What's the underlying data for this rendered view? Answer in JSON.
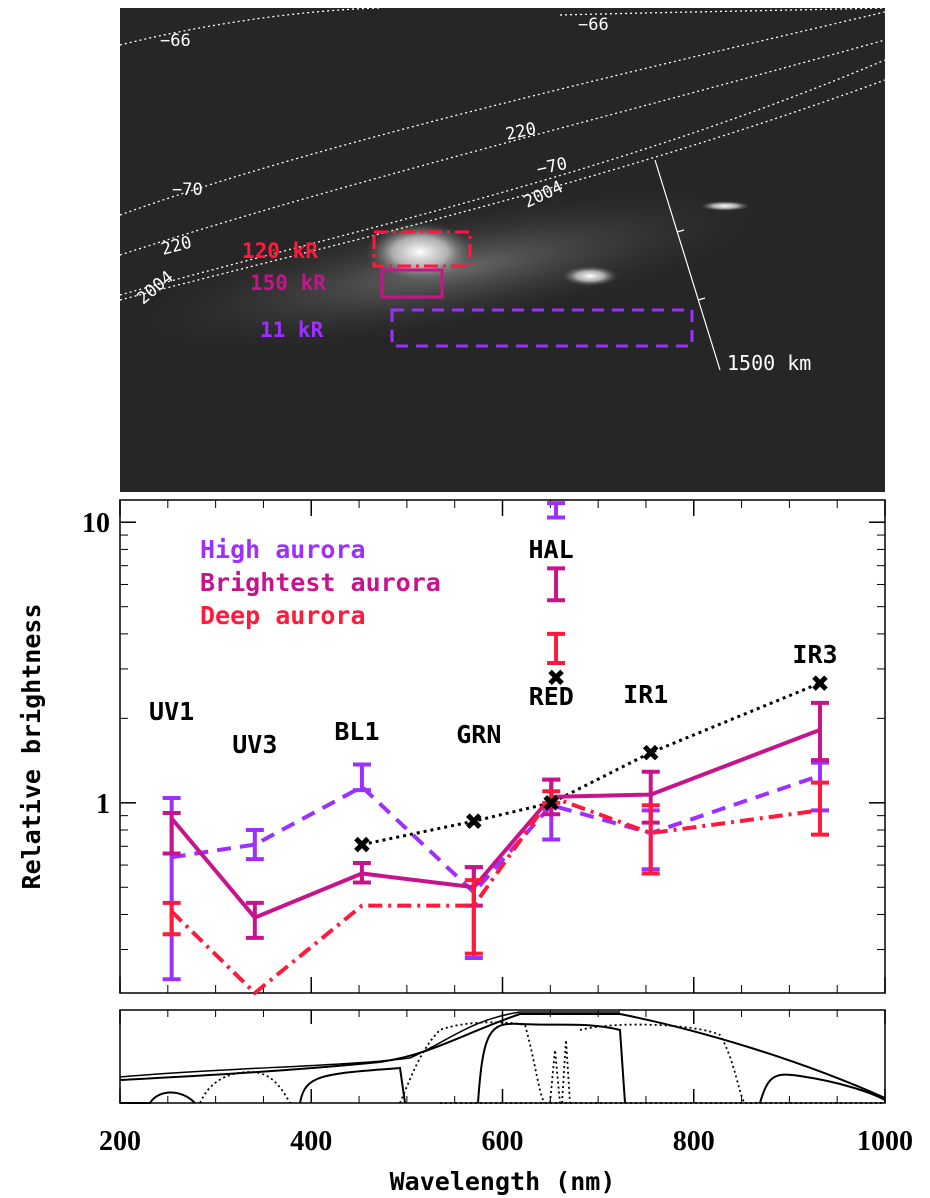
{
  "image_annotations": {
    "contour_labels": [
      "−66",
      "−66",
      "220",
      "−70",
      "−70",
      "2004",
      "220",
      "2004"
    ],
    "boxes": [
      "120 kR",
      "150 kR",
      "11 kR"
    ],
    "scale": "1500 km"
  },
  "chart_data": {
    "type": "line",
    "xlabel": "Wavelength (nm)",
    "ylabel": "Relative brightness",
    "xlim": [
      200,
      1000
    ],
    "xticks": [
      200,
      400,
      600,
      800,
      1000
    ],
    "xminorticks": [
      250,
      300,
      350,
      450,
      500,
      550,
      650,
      700,
      750,
      850,
      900,
      950
    ],
    "ylim": [
      0.21,
      12
    ],
    "yticks": [
      1,
      10
    ],
    "yminorticks": [
      0.3,
      0.4,
      0.5,
      0.6,
      0.7,
      0.8,
      0.9,
      2,
      3,
      4,
      5,
      6,
      7,
      8,
      9
    ],
    "log_y": true,
    "filters": [
      "UV1",
      "UV3",
      "BL1",
      "GRN",
      "RED",
      "IR1",
      "IR3"
    ],
    "x": [
      254,
      341,
      453,
      570,
      651,
      755,
      932
    ],
    "series": [
      {
        "name": "High aurora",
        "color": "#9b30ff",
        "dash": "dashed",
        "values": [
          0.64,
          0.71,
          1.14,
          0.48,
          0.98,
          0.78,
          1.25
        ],
        "err_low": [
          0.235,
          0.63,
          1.11,
          0.28,
          0.74,
          0.58,
          0.94
        ],
        "err_high": [
          1.04,
          0.8,
          1.37,
          0.59,
          1.21,
          0.94,
          1.39
        ]
      },
      {
        "name": "Brightest aurora",
        "color": "#c8148c",
        "dash": "solid",
        "values": [
          0.88,
          0.39,
          0.56,
          0.5,
          1.05,
          1.07,
          1.82
        ],
        "err_low": [
          0.66,
          0.33,
          0.52,
          0.43,
          0.91,
          0.85,
          1.42
        ],
        "err_high": [
          0.92,
          0.44,
          0.61,
          0.59,
          1.21,
          1.29,
          2.27
        ]
      },
      {
        "name": "Deep aurora",
        "color": "#ff1a3c",
        "dash": "dashdot",
        "values": [
          0.41,
          0.21,
          0.43,
          0.43,
          1.05,
          0.78,
          0.94
        ],
        "err_low": [
          0.34,
          null,
          null,
          0.29,
          1.0,
          0.56,
          0.77
        ],
        "err_high": [
          0.44,
          null,
          null,
          0.53,
          1.1,
          0.98,
          1.18
        ]
      }
    ],
    "hal": {
      "label": "HAL",
      "x": 656,
      "values": [
        11,
        5.97,
        3.5
      ],
      "err_low": [
        10.4,
        5.27,
        3.15
      ],
      "err_high": [
        11.7,
        6.85,
        4.0
      ],
      "reference": 2.8
    },
    "reference": {
      "color": "#000000",
      "x": [
        453,
        570,
        651,
        755,
        932
      ],
      "values": [
        0.71,
        0.86,
        1.0,
        1.51,
        2.67
      ]
    }
  }
}
